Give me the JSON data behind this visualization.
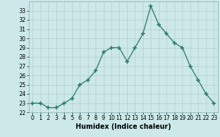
{
  "title": "",
  "xlabel": "Humidex (Indice chaleur)",
  "x": [
    0,
    1,
    2,
    3,
    4,
    5,
    6,
    7,
    8,
    9,
    10,
    11,
    12,
    13,
    14,
    15,
    16,
    17,
    18,
    19,
    20,
    21,
    22,
    23
  ],
  "y": [
    23,
    23,
    22.5,
    22.5,
    23,
    23.5,
    25,
    25.5,
    26.5,
    28.5,
    29,
    29,
    27.5,
    29,
    30.5,
    33.5,
    31.5,
    30.5,
    29.5,
    29,
    27,
    25.5,
    24,
    23
  ],
  "line_color": "#2e7d6e",
  "marker": "+",
  "marker_size": 4,
  "marker_lw": 1.2,
  "line_width": 1.0,
  "bg_color": "#cce8e8",
  "grid_color": "#b0cccc",
  "ylim": [
    22,
    34
  ],
  "xlim": [
    -0.5,
    23.5
  ],
  "yticks": [
    22,
    23,
    24,
    25,
    26,
    27,
    28,
    29,
    30,
    31,
    32,
    33
  ],
  "xticks": [
    0,
    1,
    2,
    3,
    4,
    5,
    6,
    7,
    8,
    9,
    10,
    11,
    12,
    13,
    14,
    15,
    16,
    17,
    18,
    19,
    20,
    21,
    22,
    23
  ],
  "tick_fontsize": 5.8,
  "label_fontsize": 7.0,
  "label_fontweight": "bold"
}
